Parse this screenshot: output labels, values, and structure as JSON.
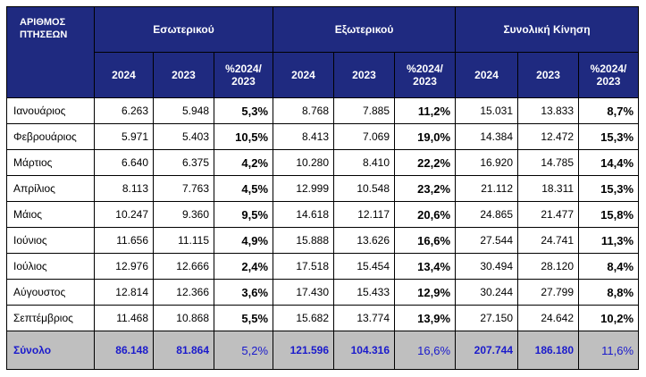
{
  "table": {
    "corner_line1": "ΑΡΙΘΜΟΣ",
    "corner_line2": "ΠΤΗΣΕΩΝ",
    "groups": [
      "Εσωτερικού",
      "Εξωτερικού",
      "Συνολική Κίνηση"
    ],
    "sub_headers": {
      "y2024": "2024",
      "y2023": "2023",
      "pct_line1": "%2024/",
      "pct_line2": "2023"
    },
    "rows": [
      {
        "month": "Ιανουάριος",
        "d24": "6.263",
        "d23": "5.948",
        "dp": "5,3%",
        "i24": "8.768",
        "i23": "7.885",
        "ip": "11,2%",
        "t24": "15.031",
        "t23": "13.833",
        "tp": "8,7%"
      },
      {
        "month": "Φεβρουάριος",
        "d24": "5.971",
        "d23": "5.403",
        "dp": "10,5%",
        "i24": "8.413",
        "i23": "7.069",
        "ip": "19,0%",
        "t24": "14.384",
        "t23": "12.472",
        "tp": "15,3%"
      },
      {
        "month": "Μάρτιος",
        "d24": "6.640",
        "d23": "6.375",
        "dp": "4,2%",
        "i24": "10.280",
        "i23": "8.410",
        "ip": "22,2%",
        "t24": "16.920",
        "t23": "14.785",
        "tp": "14,4%"
      },
      {
        "month": "Απρίλιος",
        "d24": "8.113",
        "d23": "7.763",
        "dp": "4,5%",
        "i24": "12.999",
        "i23": "10.548",
        "ip": "23,2%",
        "t24": "21.112",
        "t23": "18.311",
        "tp": "15,3%"
      },
      {
        "month": "Μάιος",
        "d24": "10.247",
        "d23": "9.360",
        "dp": "9,5%",
        "i24": "14.618",
        "i23": "12.117",
        "ip": "20,6%",
        "t24": "24.865",
        "t23": "21.477",
        "tp": "15,8%"
      },
      {
        "month": "Ιούνιος",
        "d24": "11.656",
        "d23": "11.115",
        "dp": "4,9%",
        "i24": "15.888",
        "i23": "13.626",
        "ip": "16,6%",
        "t24": "27.544",
        "t23": "24.741",
        "tp": "11,3%"
      },
      {
        "month": "Ιούλιος",
        "d24": "12.976",
        "d23": "12.666",
        "dp": "2,4%",
        "i24": "17.518",
        "i23": "15.454",
        "ip": "13,4%",
        "t24": "30.494",
        "t23": "28.120",
        "tp": "8,4%"
      },
      {
        "month": "Αύγουστος",
        "d24": "12.814",
        "d23": "12.366",
        "dp": "3,6%",
        "i24": "17.430",
        "i23": "15.433",
        "ip": "12,9%",
        "t24": "30.244",
        "t23": "27.799",
        "tp": "8,8%"
      },
      {
        "month": "Σεπτέμβριος",
        "d24": "11.468",
        "d23": "10.868",
        "dp": "5,5%",
        "i24": "15.682",
        "i23": "13.774",
        "ip": "13,9%",
        "t24": "27.150",
        "t23": "24.642",
        "tp": "10,2%"
      }
    ],
    "total": {
      "month": "Σύνολο",
      "d24": "86.148",
      "d23": "81.864",
      "dp": "5,2%",
      "i24": "121.596",
      "i23": "104.316",
      "ip": "16,6%",
      "t24": "207.744",
      "t23": "186.180",
      "tp": "11,6%"
    }
  }
}
